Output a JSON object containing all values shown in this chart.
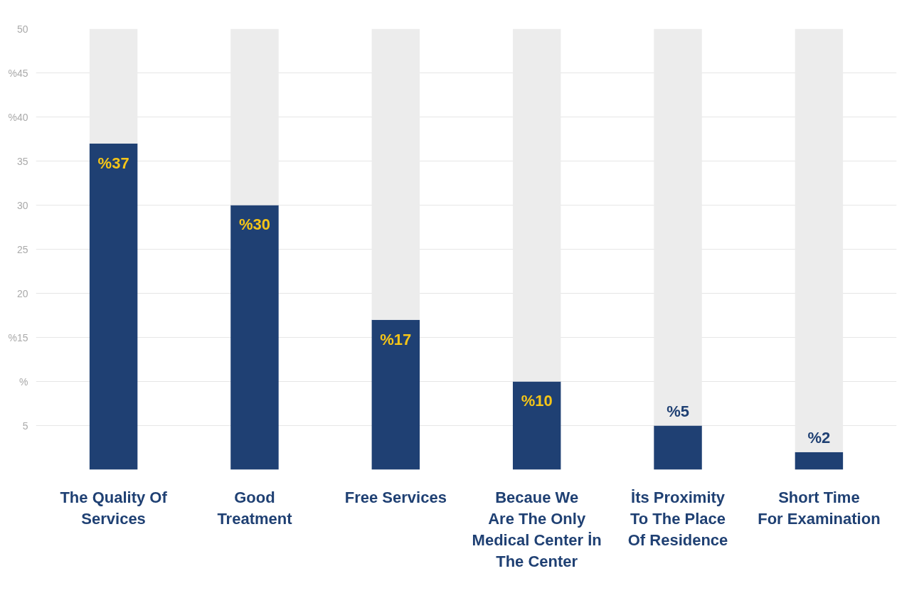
{
  "chart_data": {
    "type": "bar",
    "stacked": true,
    "categories": [
      "The Quality Of\nServices",
      "Good\nTreatment",
      "Free Services",
      "Becaue We\nAre The Only\nMedical Center İn\nThe Center",
      "İts Proximity\nTo The Place\nOf Residence",
      "Short Time\nFor Examination"
    ],
    "series": [
      {
        "color": "#1f4073",
        "values": [
          37,
          30,
          17,
          10,
          5,
          2
        ],
        "value_labels": [
          "%37",
          "%30",
          "%17",
          "%10",
          "%5",
          "%2"
        ]
      },
      {
        "color": "#ececec",
        "values": [
          13,
          20,
          33,
          40,
          45,
          48
        ]
      }
    ],
    "ylim": [
      0,
      50
    ],
    "yticks": [
      5,
      {
        "value": 10,
        "label": "%"
      },
      {
        "value": 15,
        "label": "%15"
      },
      20,
      25,
      30,
      35,
      {
        "value": 40,
        "label": "%40"
      },
      {
        "value": 45,
        "label": "%45"
      },
      50
    ],
    "grid": "y"
  }
}
